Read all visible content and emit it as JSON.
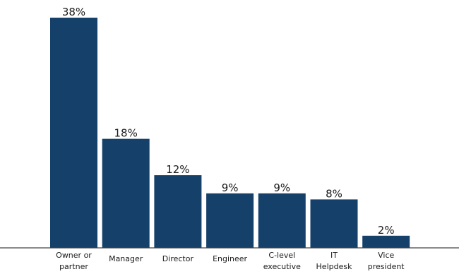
{
  "chart_data": {
    "type": "bar",
    "categories": [
      [
        "Owner or",
        "partner"
      ],
      [
        "Manager"
      ],
      [
        "Director"
      ],
      [
        "Engineer"
      ],
      [
        "C-level",
        "executive"
      ],
      [
        "IT",
        "Helpdesk"
      ],
      [
        "Vice",
        "president"
      ]
    ],
    "values": [
      38,
      18,
      12,
      9,
      9,
      8,
      2
    ],
    "value_labels": [
      "38%",
      "18%",
      "12%",
      "9%",
      "9%",
      "8%",
      "2%"
    ],
    "ylim": [
      0,
      40
    ],
    "grid": false,
    "legend": "none",
    "bar_color": "#15406a"
  }
}
